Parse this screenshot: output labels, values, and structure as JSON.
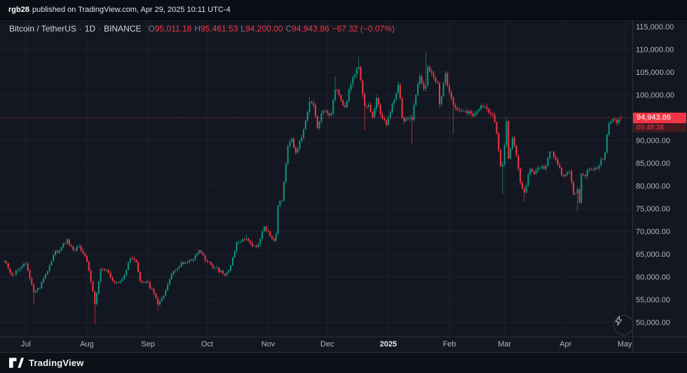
{
  "attribution": {
    "user": "rgb28",
    "text": "published on TradingView.com, Apr 29, 2025 10:11 UTC-4"
  },
  "header": {
    "symbol": "Bitcoin / TetherUS",
    "sep": "·",
    "interval": "1D",
    "exchange": "BINANCE",
    "ohlc": [
      {
        "label": "O",
        "value": "95,011.18"
      },
      {
        "label": "H",
        "value": "95,461.53"
      },
      {
        "label": "L",
        "value": "94,200.00"
      },
      {
        "label": "C",
        "value": "94,943.86"
      }
    ],
    "change": "−67.32 (−0.07%)"
  },
  "price_label": {
    "value": "94,943.86",
    "countdown": "09:48:38",
    "price": 94943.86
  },
  "footer": {
    "brand": "TradingView"
  },
  "colors": {
    "up": "#089981",
    "down": "#f23645",
    "accent_red": "#f23645",
    "background": "#131722",
    "grid": "#1e222d",
    "axis_text": "#b2b5be"
  },
  "chart_data": {
    "type": "candlestick",
    "title": "Bitcoin / TetherUS · 1D · BINANCE",
    "ylim": [
      46900,
      116500
    ],
    "grid": true,
    "last_price": 94943.86,
    "ohlc_today": {
      "o": 95011.18,
      "h": 95461.53,
      "l": 94200.0,
      "c": 94943.86
    },
    "y_ticks": [
      {
        "v": 115000,
        "label": "115,000.00"
      },
      {
        "v": 110000,
        "label": "110,000.00"
      },
      {
        "v": 105000,
        "label": "105,000.00"
      },
      {
        "v": 100000,
        "label": "100,000.00"
      },
      {
        "v": 95000,
        "label": "95,000.00"
      },
      {
        "v": 90000,
        "label": "90,000.00"
      },
      {
        "v": 85000,
        "label": "85,000.00"
      },
      {
        "v": 80000,
        "label": "80,000.00"
      },
      {
        "v": 75000,
        "label": "75,000.00"
      },
      {
        "v": 70000,
        "label": "70,000.00"
      },
      {
        "v": 65000,
        "label": "65,000.00"
      },
      {
        "v": 60000,
        "label": "60,000.00"
      },
      {
        "v": 55000,
        "label": "55,000.00"
      },
      {
        "v": 50000,
        "label": "50,000.00"
      }
    ],
    "x_ticks": [
      {
        "label": "Jul",
        "day": 11
      },
      {
        "label": "Aug",
        "day": 42
      },
      {
        "label": "Sep",
        "day": 73
      },
      {
        "label": "Oct",
        "day": 103
      },
      {
        "label": "Nov",
        "day": 134
      },
      {
        "label": "Dec",
        "day": 164
      },
      {
        "label": "2025",
        "day": 195,
        "major": true
      },
      {
        "label": "Feb",
        "day": 226
      },
      {
        "label": "Mar",
        "day": 254
      },
      {
        "label": "Apr",
        "day": 285
      },
      {
        "label": "May",
        "day": 315
      }
    ],
    "days": 313,
    "anchors": [
      [
        0,
        63500
      ],
      [
        4,
        60300
      ],
      [
        8,
        61800
      ],
      [
        11,
        62900
      ],
      [
        15,
        56600,
        53900
      ],
      [
        18,
        57500
      ],
      [
        21,
        60500
      ],
      [
        25,
        64800
      ],
      [
        29,
        66500
      ],
      [
        32,
        68200
      ],
      [
        35,
        65900
      ],
      [
        38,
        66800
      ],
      [
        41,
        64600
      ],
      [
        43,
        61400
      ],
      [
        46,
        54000,
        49500
      ],
      [
        49,
        61700
      ],
      [
        53,
        60900
      ],
      [
        56,
        58700
      ],
      [
        60,
        59500
      ],
      [
        64,
        64100
      ],
      [
        67,
        63200
      ],
      [
        69,
        59100
      ],
      [
        72,
        59000
      ],
      [
        75,
        57300
      ],
      [
        78,
        53900,
        52550
      ],
      [
        82,
        57000
      ],
      [
        85,
        60600
      ],
      [
        90,
        63200
      ],
      [
        95,
        63600
      ],
      [
        99,
        65800
      ],
      [
        103,
        63300
      ],
      [
        107,
        62000
      ],
      [
        112,
        60300
      ],
      [
        115,
        62500
      ],
      [
        118,
        67600
      ],
      [
        123,
        68400,
        null,
        69300
      ],
      [
        126,
        66700
      ],
      [
        129,
        67100
      ],
      [
        132,
        71000
      ],
      [
        134,
        69900
      ],
      [
        137,
        67900
      ],
      [
        138,
        69400
      ],
      [
        139,
        75600
      ],
      [
        141,
        76700
      ],
      [
        144,
        88700
      ],
      [
        146,
        90400
      ],
      [
        148,
        87300
      ],
      [
        151,
        90600
      ],
      [
        153,
        94300
      ],
      [
        155,
        98500,
        null,
        99600
      ],
      [
        157,
        97700
      ],
      [
        159,
        92700
      ],
      [
        161,
        95900
      ],
      [
        163,
        96500
      ],
      [
        166,
        95900
      ],
      [
        168,
        101100,
        null,
        104000
      ],
      [
        170,
        99900
      ],
      [
        173,
        97300
      ],
      [
        175,
        101100
      ],
      [
        178,
        104500
      ],
      [
        180,
        106100,
        null,
        108300
      ],
      [
        182,
        100100
      ],
      [
        183,
        97500,
        92200
      ],
      [
        185,
        97800
      ],
      [
        187,
        95100
      ],
      [
        189,
        99300
      ],
      [
        191,
        95700
      ],
      [
        194,
        93400
      ],
      [
        197,
        98100
      ],
      [
        200,
        102200
      ],
      [
        202,
        95000
      ],
      [
        204,
        94700
      ],
      [
        207,
        94500,
        89200
      ],
      [
        209,
        100000
      ],
      [
        211,
        104100
      ],
      [
        213,
        101300
      ],
      [
        214,
        102000,
        null,
        109350
      ],
      [
        215,
        106100
      ],
      [
        217,
        104800
      ],
      [
        220,
        102600
      ],
      [
        221,
        98000,
        97100
      ],
      [
        224,
        104700
      ],
      [
        226,
        100600
      ],
      [
        228,
        97800,
        91300
      ],
      [
        231,
        96600
      ],
      [
        234,
        96500
      ],
      [
        239,
        95800
      ],
      [
        242,
        97600
      ],
      [
        246,
        96100
      ],
      [
        248,
        95600
      ],
      [
        250,
        91500
      ],
      [
        252,
        84300
      ],
      [
        253,
        84700,
        78100
      ],
      [
        255,
        94200,
        null,
        95000
      ],
      [
        256,
        86000
      ],
      [
        258,
        90600
      ],
      [
        260,
        86700
      ],
      [
        262,
        80700
      ],
      [
        264,
        78500,
        76600
      ],
      [
        267,
        83700
      ],
      [
        269,
        82600
      ],
      [
        272,
        84000
      ],
      [
        275,
        84400
      ],
      [
        277,
        87500
      ],
      [
        280,
        85800
      ],
      [
        283,
        82300
      ],
      [
        285,
        82500
      ],
      [
        287,
        83200
      ],
      [
        289,
        78200
      ],
      [
        291,
        79200,
        74400
      ],
      [
        292,
        76300
      ],
      [
        293,
        82600
      ],
      [
        295,
        82100
      ],
      [
        297,
        83700
      ],
      [
        300,
        84000
      ],
      [
        302,
        84500
      ],
      [
        305,
        87300
      ],
      [
        306,
        91200
      ],
      [
        307,
        93700
      ],
      [
        309,
        94700
      ],
      [
        311,
        93800
      ],
      [
        313,
        94943.86
      ]
    ]
  }
}
